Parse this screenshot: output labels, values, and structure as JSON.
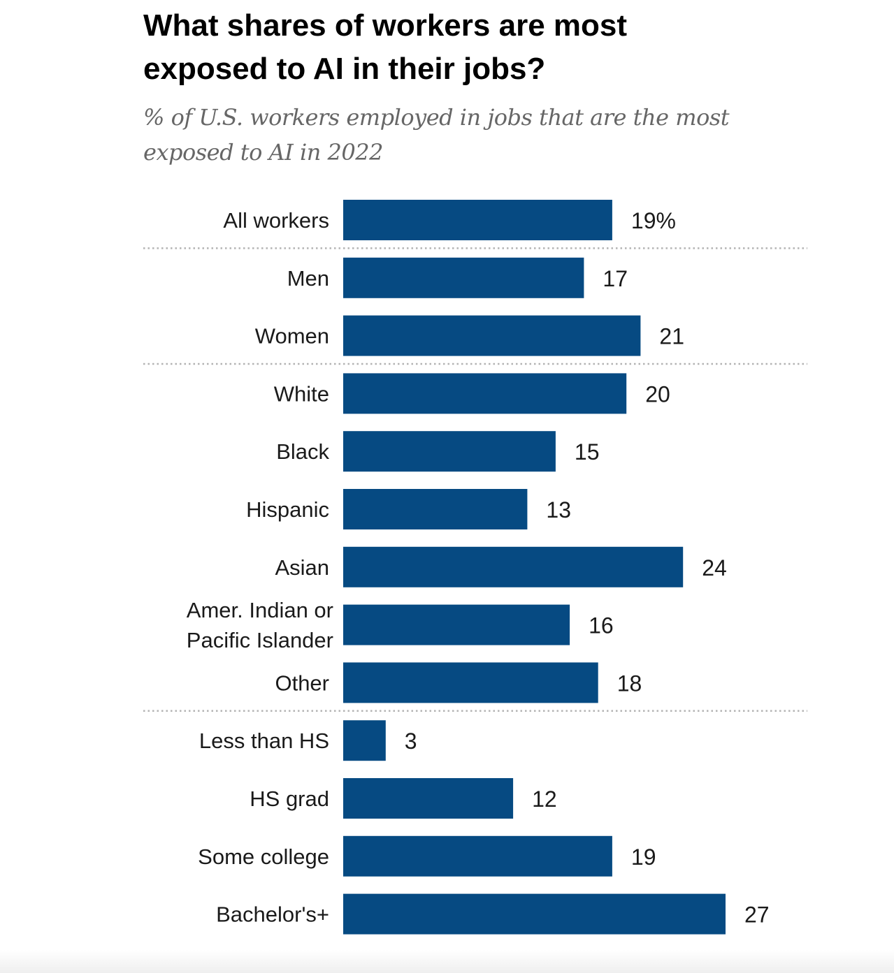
{
  "colors": {
    "bar": "#064a82",
    "separator": "#b3b3b3",
    "label": "#1a1a1a"
  },
  "chart_data": {
    "type": "bar",
    "orientation": "horizontal",
    "title": "What shares of workers are most\nexposed to AI in their jobs?",
    "subtitle": "% of U.S. workers employed in jobs that are the most\nexposed to AI in 2022",
    "categories": [
      [
        "All workers"
      ],
      [
        "Men"
      ],
      [
        "Women"
      ],
      [
        "White"
      ],
      [
        "Black"
      ],
      [
        "Hispanic"
      ],
      [
        "Asian"
      ],
      [
        "Amer. Indian or",
        "Pacific Islander"
      ],
      [
        "Other"
      ],
      [
        "Less than HS"
      ],
      [
        "HS grad"
      ],
      [
        "Some college"
      ],
      [
        "Bachelor's+"
      ]
    ],
    "values": [
      19,
      17,
      21,
      20,
      15,
      13,
      24,
      16,
      18,
      3,
      12,
      19,
      27
    ],
    "value_labels": [
      "19%",
      "17",
      "21",
      "20",
      "15",
      "13",
      "24",
      "16",
      "18",
      "3",
      "12",
      "19",
      "27"
    ],
    "group_separators_after_index": [
      0,
      2,
      8
    ],
    "xlim": [
      0,
      27
    ],
    "grid": false,
    "legend": "none"
  }
}
